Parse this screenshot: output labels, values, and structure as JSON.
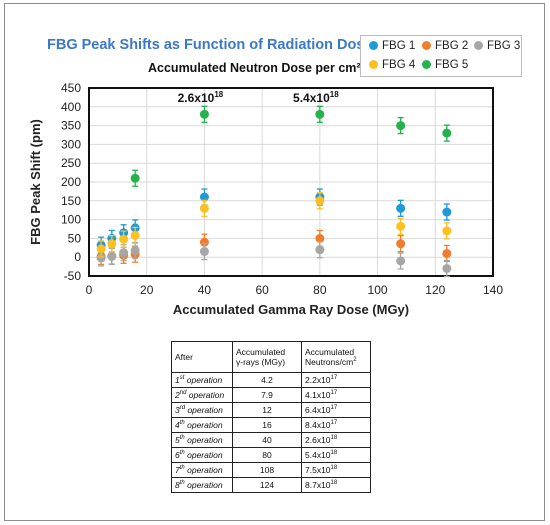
{
  "chart_data": {
    "type": "scatter",
    "title": "FBG Peak Shifts as Function of Radiation Dose",
    "secondary_axis_label": "Accumulated Neutron Dose per cm²",
    "xlabel": "Accumulated Gamma Ray Dose (MGy)",
    "ylabel": "FBG Peak Shift (pm)",
    "xlim": [
      0,
      140
    ],
    "ylim": [
      -50,
      450
    ],
    "x_ticks": [
      0,
      20,
      40,
      60,
      80,
      100,
      120,
      140
    ],
    "y_ticks": [
      -50,
      0,
      50,
      100,
      150,
      200,
      250,
      300,
      350,
      400,
      450
    ],
    "legend_position": "top-right",
    "annotations": [
      {
        "text": "2.6x10",
        "sup": "18",
        "x": 40
      },
      {
        "text": "5.4x10",
        "sup": "18",
        "x": 80
      }
    ],
    "series": [
      {
        "name": "FBG 1",
        "color": "#1f9ad9",
        "x": [
          4.2,
          7.9,
          12,
          16,
          40,
          80,
          108,
          124
        ],
        "y": [
          32,
          50,
          65,
          78,
          160,
          160,
          130,
          120
        ]
      },
      {
        "name": "FBG 2",
        "color": "#ef7d2c",
        "x": [
          4.2,
          7.9,
          12,
          16,
          40,
          80,
          108,
          124
        ],
        "y": [
          2,
          3,
          5,
          8,
          40,
          50,
          36,
          10
        ]
      },
      {
        "name": "FBG 3",
        "color": "#a6a6a6",
        "x": [
          4.2,
          7.9,
          12,
          16,
          40,
          80,
          108,
          124
        ],
        "y": [
          -2,
          2,
          12,
          18,
          15,
          20,
          -10,
          -30
        ]
      },
      {
        "name": "FBG 4",
        "color": "#fdc021",
        "x": [
          4.2,
          7.9,
          12,
          16,
          40,
          80,
          108,
          124
        ],
        "y": [
          22,
          36,
          48,
          58,
          130,
          150,
          82,
          70
        ]
      },
      {
        "name": "FBG 5",
        "color": "#25b14c",
        "x": [
          16,
          40,
          80,
          108,
          124
        ],
        "y": [
          210,
          380,
          380,
          350,
          330
        ]
      }
    ]
  },
  "table": {
    "headers": [
      "After",
      "Accumulated",
      "γ-rays (MGy)",
      "Accumulated",
      "Neutrons/cm"
    ],
    "header_sup": "2",
    "rows": [
      {
        "n": "1",
        "sfx": "st",
        "op": " operation",
        "gamma": "4.2",
        "neu": "2.2x10",
        "exp": "17"
      },
      {
        "n": "2",
        "sfx": "nd",
        "op": " operation",
        "gamma": "7.9",
        "neu": "4.1x10",
        "exp": "17"
      },
      {
        "n": "3",
        "sfx": "rd",
        "op": " operation",
        "gamma": "12",
        "neu": "6.4x10",
        "exp": "17"
      },
      {
        "n": "4",
        "sfx": "th",
        "op": " operation",
        "gamma": "16",
        "neu": "8.4x10",
        "exp": "17"
      },
      {
        "n": "5",
        "sfx": "th",
        "op": " operation",
        "gamma": "40",
        "neu": "2.6x10",
        "exp": "18"
      },
      {
        "n": "6",
        "sfx": "th",
        "op": " operation",
        "gamma": "80",
        "neu": "5.4x10",
        "exp": "18"
      },
      {
        "n": "7",
        "sfx": "th",
        "op": " operation",
        "gamma": "108",
        "neu": "7.5x10",
        "exp": "18"
      },
      {
        "n": "8",
        "sfx": "th",
        "op": " operation",
        "gamma": "124",
        "neu": "8.7x10",
        "exp": "18"
      }
    ]
  }
}
